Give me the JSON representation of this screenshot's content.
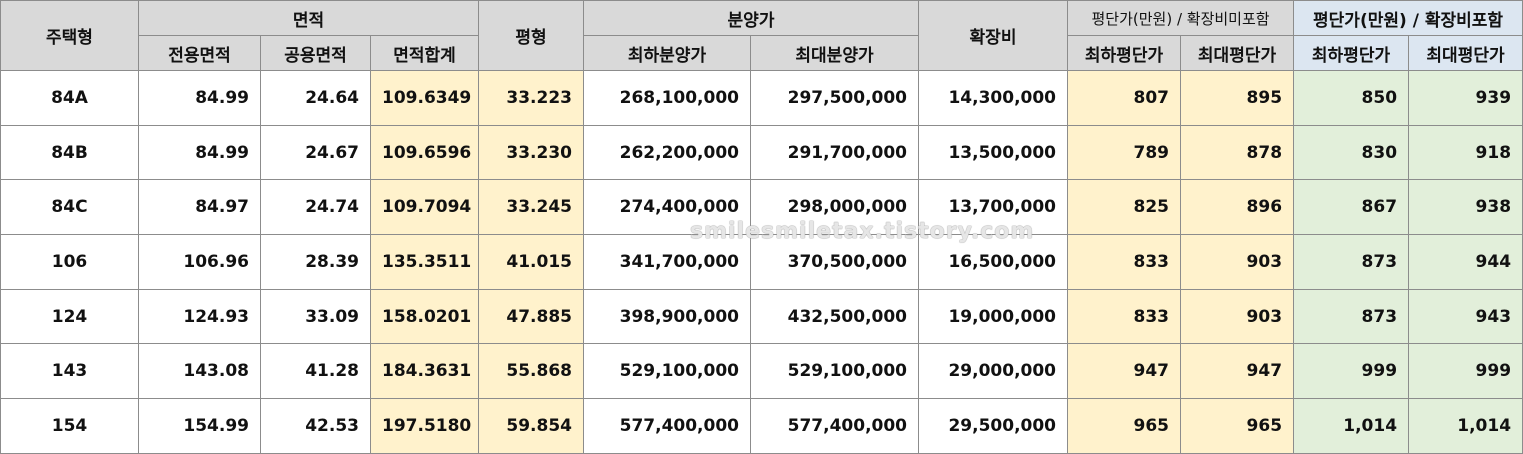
{
  "table": {
    "header_top": [
      "주택형",
      "면적",
      "평형",
      "분양가",
      "확장비",
      "평단가(만원) / 확장비미포함",
      "평단가(만원) / 확장비포함"
    ],
    "header_sub": [
      "전용면적",
      "공용면적",
      "면적합계",
      "최하분양가",
      "최대분양가",
      "최하평단가",
      "최대평단가",
      "최하평단가",
      "최대평단가"
    ],
    "rows": [
      [
        "84A",
        "84.99",
        "24.64",
        "109.6349",
        "33.223",
        "268,100,000",
        "297,500,000",
        "14,300,000",
        "807",
        "895",
        "850",
        "939"
      ],
      [
        "84B",
        "84.99",
        "24.67",
        "109.6596",
        "33.230",
        "262,200,000",
        "291,700,000",
        "13,500,000",
        "789",
        "878",
        "830",
        "918"
      ],
      [
        "84C",
        "84.97",
        "24.74",
        "109.7094",
        "33.245",
        "274,400,000",
        "298,000,000",
        "13,700,000",
        "825",
        "896",
        "867",
        "938"
      ],
      [
        "106",
        "106.96",
        "28.39",
        "135.3511",
        "41.015",
        "341,700,000",
        "370,500,000",
        "16,500,000",
        "833",
        "903",
        "873",
        "944"
      ],
      [
        "124",
        "124.93",
        "33.09",
        "158.0201",
        "47.885",
        "398,900,000",
        "432,500,000",
        "19,000,000",
        "833",
        "903",
        "873",
        "943"
      ],
      [
        "143",
        "143.08",
        "41.28",
        "184.3631",
        "55.868",
        "529,100,000",
        "529,100,000",
        "29,000,000",
        "947",
        "947",
        "999",
        "999"
      ],
      [
        "154",
        "154.99",
        "42.53",
        "197.5180",
        "59.854",
        "577,400,000",
        "577,400,000",
        "29,500,000",
        "965",
        "965",
        "1,014",
        "1,014"
      ]
    ]
  },
  "watermark": "smilesmiletax.tistory.com"
}
